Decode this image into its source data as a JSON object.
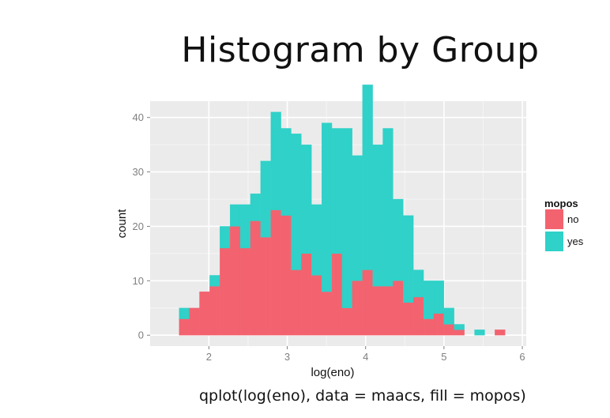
{
  "slide": {
    "title": "Histogram by Group",
    "caption": "qplot(log(eno), data = maacs, fill = mopos)"
  },
  "colors": {
    "no": "#F2636F",
    "yes": "#2FD1C8",
    "panel": "#EBEBEB",
    "grid_major": "#FFFFFF",
    "grid_minor": "#F5F5F5",
    "tick_text": "#7F7F7F"
  },
  "chart_data": {
    "type": "bar",
    "stacked": true,
    "xlabel": "log(eno)",
    "ylabel": "count",
    "xlim": [
      1.25,
      6.05
    ],
    "ylim": [
      -2,
      43
    ],
    "x_ticks": [
      2,
      3,
      4,
      5,
      6
    ],
    "y_ticks": [
      0,
      10,
      20,
      30,
      40
    ],
    "x_tick_labels": [
      "2",
      "3",
      "4",
      "5",
      "6"
    ],
    "y_tick_labels": [
      "0",
      "10",
      "20",
      "30",
      "40"
    ],
    "grid": true,
    "legend": {
      "title": "mopos",
      "position": "right",
      "entries": [
        "no",
        "yes"
      ]
    },
    "bin_start": [
      1.62,
      1.75,
      1.88,
      2.01,
      2.14,
      2.27,
      2.4,
      2.53,
      2.66,
      2.79,
      2.92,
      3.05,
      3.18,
      3.31,
      3.44,
      3.57,
      3.7,
      3.83,
      3.96,
      4.09,
      4.22,
      4.35,
      4.48,
      4.61,
      4.74,
      4.87,
      5.0,
      5.13,
      5.26,
      5.39,
      5.52,
      5.65
    ],
    "bin_end": [
      1.75,
      1.88,
      2.01,
      2.14,
      2.27,
      2.4,
      2.53,
      2.66,
      2.79,
      2.92,
      3.05,
      3.18,
      3.31,
      3.44,
      3.57,
      3.7,
      3.83,
      3.96,
      4.09,
      4.22,
      4.35,
      4.48,
      4.61,
      4.74,
      4.87,
      5.0,
      5.13,
      5.26,
      5.39,
      5.52,
      5.65,
      5.78
    ],
    "series": [
      {
        "name": "no",
        "values": [
          3,
          5,
          8,
          9,
          16,
          20,
          16,
          21,
          18,
          23,
          22,
          12,
          15,
          11,
          8,
          15,
          5,
          10,
          12,
          9,
          9,
          10,
          6,
          7,
          3,
          4,
          2,
          1,
          0,
          0,
          0,
          1
        ]
      },
      {
        "name": "yes",
        "values": [
          2,
          0,
          0,
          2,
          4,
          4,
          8,
          5,
          14,
          18,
          16,
          25,
          20,
          13,
          31,
          23,
          33,
          23,
          34,
          26,
          29,
          15,
          16,
          5,
          7,
          6,
          3,
          1,
          0,
          1,
          0,
          0
        ]
      }
    ]
  }
}
